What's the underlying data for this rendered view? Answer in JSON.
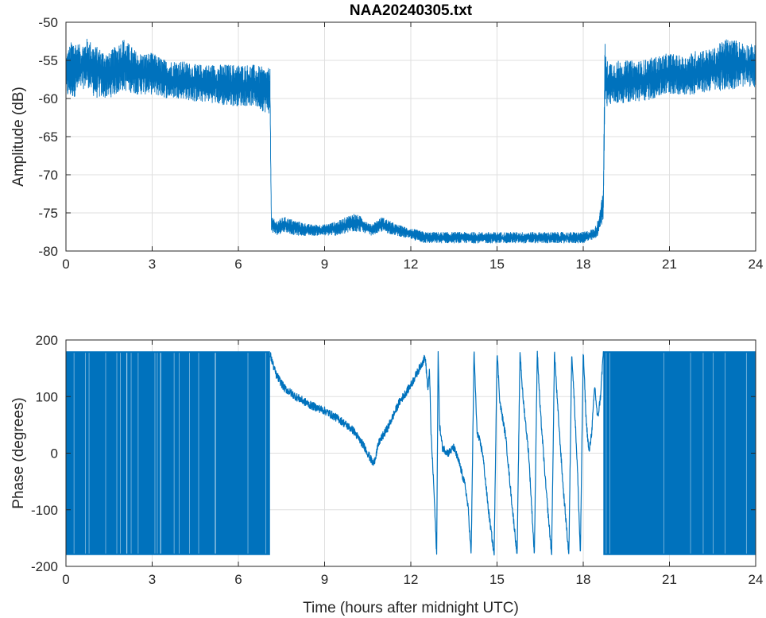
{
  "chart_data": [
    {
      "type": "line",
      "title": "NAA20240305.txt",
      "xlabel": "",
      "ylabel": "Amplitude (dB)",
      "xlim": [
        0,
        24
      ],
      "ylim": [
        -80,
        -50
      ],
      "xticks": [
        "0",
        "3",
        "6",
        "9",
        "12",
        "15",
        "18",
        "21",
        "24"
      ],
      "yticks": [
        "-50",
        "-55",
        "-60",
        "-65",
        "-70",
        "-75",
        "-80"
      ],
      "grid": true,
      "color": "#0072BD",
      "series": [
        {
          "x": [
            0,
            0.25,
            0.5,
            0.75,
            1.0,
            1.5,
            2.0,
            2.5,
            3.0,
            3.5,
            4.0,
            4.5,
            5.0,
            5.5,
            6.0,
            6.5,
            7.0,
            7.1,
            7.15,
            7.3,
            7.6,
            8.0,
            8.5,
            9.0,
            9.5,
            10.0,
            10.3,
            10.6,
            11.0,
            11.5,
            12.0,
            12.5,
            13.0,
            13.5,
            14.0,
            14.5,
            15.0,
            15.5,
            16.0,
            16.5,
            17.0,
            17.5,
            18.0,
            18.4,
            18.5,
            18.6,
            18.7,
            18.75,
            18.8,
            19.0,
            19.5,
            20.0,
            20.5,
            21.0,
            21.5,
            22.0,
            22.5,
            23.0,
            23.5,
            24.0
          ],
          "y_upper": [
            -54,
            -52,
            -53,
            -52,
            -53,
            -54,
            -52,
            -54,
            -54,
            -55,
            -55,
            -55.5,
            -55.5,
            -55.5,
            -55.5,
            -55.5,
            -56,
            -56,
            -75.5,
            -76,
            -75.5,
            -76,
            -76.5,
            -76.5,
            -76,
            -75,
            -75.5,
            -76.5,
            -75.5,
            -76.5,
            -77,
            -77.5,
            -77.5,
            -77.5,
            -77.5,
            -77.5,
            -77.5,
            -77.5,
            -77.5,
            -77.5,
            -77.5,
            -77.5,
            -77.5,
            -77,
            -76,
            -74,
            -72,
            -51.5,
            -55,
            -55,
            -55,
            -55,
            -54.5,
            -54,
            -54.5,
            -53.5,
            -53.5,
            -52,
            -52.5,
            -53
          ],
          "y_lower": [
            -60,
            -60,
            -59,
            -58.5,
            -60,
            -60,
            -59,
            -59.5,
            -59.5,
            -60,
            -60,
            -60.5,
            -60.5,
            -61,
            -61,
            -61,
            -62,
            -62,
            -77.5,
            -78,
            -77.5,
            -78,
            -78,
            -78,
            -78,
            -77.5,
            -77.5,
            -78,
            -77.5,
            -78,
            -78.5,
            -79,
            -79,
            -79,
            -79,
            -79,
            -79,
            -79,
            -79,
            -79,
            -79,
            -79,
            -79,
            -78.5,
            -78,
            -77,
            -76,
            -61,
            -61,
            -61,
            -60.5,
            -60.5,
            -60,
            -59.5,
            -59.5,
            -59.5,
            -59,
            -59,
            -58.5,
            -58.5
          ]
        }
      ]
    },
    {
      "type": "line",
      "title": "",
      "xlabel": "Time (hours after midnight UTC)",
      "ylabel": "Phase (degrees)",
      "xlim": [
        0,
        24
      ],
      "ylim": [
        -200,
        200
      ],
      "xticks": [
        "0",
        "3",
        "6",
        "9",
        "12",
        "15",
        "18",
        "21",
        "24"
      ],
      "yticks": [
        "200",
        "100",
        "0",
        "-100",
        "-200"
      ],
      "grid": true,
      "color": "#0072BD",
      "noise_band": [
        {
          "x_start": 0,
          "x_end": 7.1,
          "y_min": -180,
          "y_max": 180
        },
        {
          "x_start": 18.7,
          "x_end": 24,
          "y_min": -180,
          "y_max": 180
        }
      ],
      "series": [
        {
          "x": [
            7.1,
            7.3,
            7.6,
            8.0,
            8.5,
            9.0,
            9.5,
            10.0,
            10.4,
            10.7,
            10.9,
            11.2,
            11.6,
            12.0,
            12.3,
            12.5,
            12.6,
            12.65,
            12.7,
            12.8,
            12.9,
            12.95,
            13.0,
            13.1,
            13.3,
            13.5,
            13.7,
            13.9,
            14.0,
            14.1,
            14.2,
            14.3,
            14.5,
            14.7,
            14.9,
            15.0,
            15.1,
            15.3,
            15.5,
            15.7,
            15.8,
            15.9,
            16.1,
            16.3,
            16.4,
            16.5,
            16.7,
            16.9,
            17.0,
            17.1,
            17.3,
            17.5,
            17.6,
            17.7,
            17.8,
            17.9,
            18.0,
            18.1,
            18.2,
            18.3,
            18.4,
            18.5,
            18.6,
            18.7
          ],
          "y": [
            175,
            140,
            115,
            100,
            85,
            75,
            60,
            40,
            10,
            -20,
            20,
            45,
            90,
            120,
            150,
            170,
            110,
            150,
            40,
            -60,
            -180,
            180,
            50,
            10,
            0,
            10,
            -20,
            -60,
            -100,
            -180,
            180,
            40,
            0,
            -100,
            -180,
            180,
            90,
            30,
            -80,
            -180,
            180,
            100,
            0,
            -180,
            180,
            80,
            -60,
            -180,
            180,
            90,
            -60,
            -180,
            180,
            80,
            -30,
            -180,
            180,
            60,
            0,
            40,
            120,
            60,
            100,
            180
          ]
        }
      ]
    }
  ]
}
